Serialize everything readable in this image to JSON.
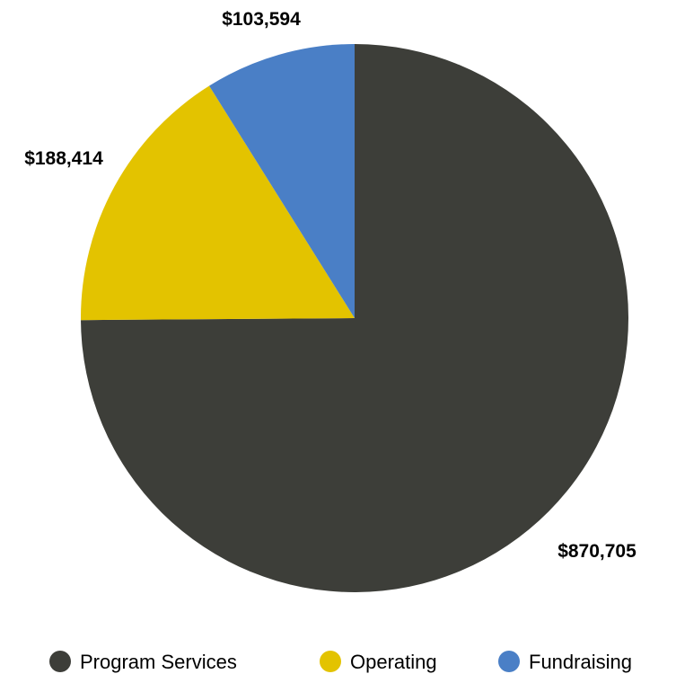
{
  "chart_data": {
    "type": "pie",
    "title": "",
    "categories": [
      "Program Services",
      "Operating",
      "Fundraising"
    ],
    "values": [
      870705,
      188414,
      103594
    ],
    "value_labels": [
      "$870,705",
      "$188,414",
      "$103,594"
    ],
    "colors": [
      "#3d3e39",
      "#e3c300",
      "#4a7fc6"
    ],
    "start_angle": "12 o'clock",
    "direction": "clockwise",
    "legend": {
      "position": "bottom",
      "items": [
        {
          "label": "Program Services",
          "color": "#3d3e39"
        },
        {
          "label": "Operating",
          "color": "#e3c300"
        },
        {
          "label": "Fundraising",
          "color": "#4a7fc6"
        }
      ]
    }
  }
}
